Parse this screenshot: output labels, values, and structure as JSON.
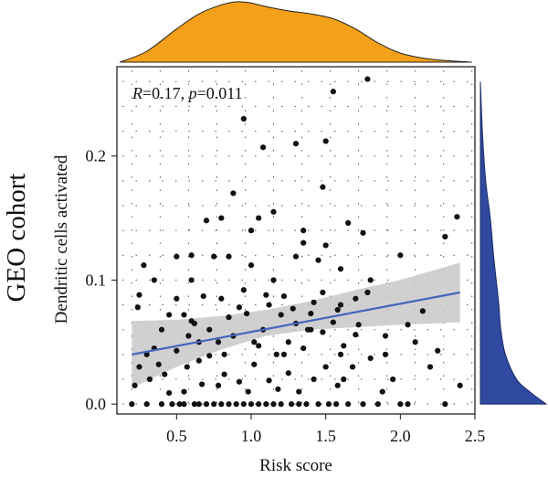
{
  "chart_data": {
    "type": "scatter",
    "side_label": "GEO cohort",
    "xlabel": "Risk score",
    "ylabel": "Dendritic cells activated",
    "xlim": [
      0.1,
      2.5
    ],
    "ylim": [
      -0.008,
      0.272
    ],
    "xticks": [
      "0.5",
      "1.0",
      "1.5",
      "2.0",
      "2.5"
    ],
    "xtick_values": [
      0.5,
      1.0,
      1.5,
      2.0,
      2.5
    ],
    "yticks": [
      "0.0",
      "0.1",
      "0.2"
    ],
    "ytick_values": [
      0.0,
      0.1,
      0.2
    ],
    "annotation": {
      "r_label": "R",
      "r_value": "=0.17, ",
      "p_label": "p",
      "p_value": "=0.011"
    },
    "grid": "dotted",
    "colors": {
      "points": "#111111",
      "trend": "#4466bb",
      "band": "#c8c8c8",
      "top_density": "#f5a01a",
      "right_density": "#2f4aa0"
    },
    "trend": {
      "x": [
        0.2,
        2.4
      ],
      "y": [
        0.04,
        0.09
      ]
    },
    "band": {
      "x": [
        0.2,
        0.5,
        0.8,
        1.1,
        1.4,
        1.7,
        2.0,
        2.4
      ],
      "lower": [
        0.013,
        0.03,
        0.044,
        0.055,
        0.06,
        0.062,
        0.064,
        0.066
      ],
      "upper": [
        0.067,
        0.068,
        0.071,
        0.076,
        0.083,
        0.092,
        0.1,
        0.114
      ]
    },
    "top_density": {
      "x": [
        0.12,
        0.3,
        0.5,
        0.65,
        0.8,
        0.9,
        1.0,
        1.1,
        1.25,
        1.4,
        1.55,
        1.7,
        1.85,
        2.0,
        2.2,
        2.48
      ],
      "d": [
        0.0,
        0.18,
        0.55,
        0.8,
        0.95,
        1.0,
        0.98,
        0.92,
        0.85,
        0.8,
        0.72,
        0.55,
        0.32,
        0.15,
        0.05,
        0.0
      ]
    },
    "right_density": {
      "y": [
        0.0,
        0.01,
        0.02,
        0.04,
        0.06,
        0.08,
        0.1,
        0.12,
        0.15,
        0.18,
        0.22,
        0.26
      ],
      "d": [
        1.0,
        0.75,
        0.55,
        0.38,
        0.31,
        0.28,
        0.24,
        0.2,
        0.15,
        0.08,
        0.03,
        0.0
      ]
    },
    "points": [
      [
        0.2,
        0.0
      ],
      [
        0.22,
        0.015
      ],
      [
        0.24,
        0.078
      ],
      [
        0.25,
        0.088
      ],
      [
        0.3,
        0.04
      ],
      [
        0.3,
        0.0
      ],
      [
        0.35,
        0.045
      ],
      [
        0.38,
        0.032
      ],
      [
        0.4,
        0.0
      ],
      [
        0.42,
        0.024
      ],
      [
        0.45,
        0.009
      ],
      [
        0.47,
        0.0
      ],
      [
        0.5,
        0.043
      ],
      [
        0.52,
        0.0
      ],
      [
        0.55,
        0.0
      ],
      [
        0.57,
        0.03
      ],
      [
        0.6,
        0.067
      ],
      [
        0.62,
        0.0
      ],
      [
        0.65,
        0.05
      ],
      [
        0.65,
        0.0
      ],
      [
        0.67,
        0.016
      ],
      [
        0.7,
        0.0
      ],
      [
        0.72,
        0.039
      ],
      [
        0.75,
        0.0
      ],
      [
        0.78,
        0.05
      ],
      [
        0.8,
        0.0
      ],
      [
        0.82,
        0.024
      ],
      [
        0.85,
        0.0
      ],
      [
        0.88,
        0.055
      ],
      [
        0.9,
        0.0
      ],
      [
        0.92,
        0.018
      ],
      [
        0.95,
        0.0
      ],
      [
        0.97,
        0.073
      ],
      [
        1.0,
        0.0
      ],
      [
        1.02,
        0.032
      ],
      [
        1.05,
        0.0
      ],
      [
        1.08,
        0.06
      ],
      [
        1.1,
        0.0
      ],
      [
        1.12,
        0.019
      ],
      [
        1.15,
        0.0
      ],
      [
        1.17,
        0.04
      ],
      [
        1.2,
        0.0
      ],
      [
        1.22,
        0.087
      ],
      [
        1.25,
        0.025
      ],
      [
        1.27,
        0.0
      ],
      [
        1.3,
        0.065
      ],
      [
        1.32,
        0.0
      ],
      [
        1.35,
        0.045
      ],
      [
        1.37,
        0.0
      ],
      [
        1.4,
        0.073
      ],
      [
        1.42,
        0.02
      ],
      [
        1.45,
        0.0
      ],
      [
        1.48,
        0.058
      ],
      [
        1.5,
        0.03
      ],
      [
        1.52,
        0.0
      ],
      [
        1.55,
        0.066
      ],
      [
        1.57,
        0.0
      ],
      [
        1.6,
        0.08
      ],
      [
        1.62,
        0.02
      ],
      [
        1.65,
        0.0
      ],
      [
        1.7,
        0.056
      ],
      [
        1.75,
        0.0
      ],
      [
        1.78,
        0.09
      ],
      [
        1.8,
        0.037
      ],
      [
        1.85,
        0.0
      ],
      [
        1.9,
        0.04
      ],
      [
        1.95,
        0.02
      ],
      [
        2.0,
        0.0
      ],
      [
        2.05,
        0.0
      ],
      [
        2.1,
        0.05
      ],
      [
        2.15,
        0.075
      ],
      [
        2.2,
        0.03
      ],
      [
        2.3,
        0.0
      ],
      [
        2.4,
        0.015
      ],
      [
        0.28,
        0.112
      ],
      [
        0.5,
        0.119
      ],
      [
        0.6,
        0.1
      ],
      [
        0.75,
        0.119
      ],
      [
        0.85,
        0.119
      ],
      [
        1.0,
        0.112
      ],
      [
        1.15,
        0.1
      ],
      [
        1.3,
        0.119
      ],
      [
        1.35,
        0.13
      ],
      [
        1.45,
        0.116
      ],
      [
        1.5,
        0.128
      ],
      [
        1.6,
        0.109
      ],
      [
        1.8,
        0.1
      ],
      [
        2.0,
        0.12
      ],
      [
        0.7,
        0.148
      ],
      [
        0.88,
        0.17
      ],
      [
        1.0,
        0.14
      ],
      [
        1.15,
        0.155
      ],
      [
        1.35,
        0.14
      ],
      [
        1.48,
        0.175
      ],
      [
        1.65,
        0.146
      ],
      [
        1.75,
        0.138
      ],
      [
        2.3,
        0.135
      ],
      [
        0.95,
        0.23
      ],
      [
        1.08,
        0.207
      ],
      [
        1.3,
        0.21
      ],
      [
        1.5,
        0.212
      ],
      [
        1.55,
        0.252
      ],
      [
        1.78,
        0.262
      ],
      [
        2.38,
        0.151
      ],
      [
        0.55,
        0.072
      ],
      [
        0.68,
        0.087
      ],
      [
        0.8,
        0.085
      ],
      [
        0.95,
        0.092
      ],
      [
        1.1,
        0.088
      ],
      [
        1.28,
        0.077
      ],
      [
        1.42,
        0.082
      ],
      [
        1.58,
        0.076
      ],
      [
        1.72,
        0.064
      ],
      [
        1.9,
        0.055
      ],
      [
        2.05,
        0.064
      ],
      [
        2.25,
        0.043
      ],
      [
        0.5,
        0.085
      ],
      [
        0.62,
        0.065
      ],
      [
        0.92,
        0.078
      ],
      [
        1.05,
        0.047
      ],
      [
        1.2,
        0.072
      ],
      [
        1.38,
        0.06
      ],
      [
        1.62,
        0.047
      ],
      [
        1.68,
        0.03
      ],
      [
        1.88,
        0.01
      ],
      [
        0.4,
        0.06
      ],
      [
        0.45,
        0.072
      ],
      [
        0.58,
        0.055
      ],
      [
        0.72,
        0.06
      ],
      [
        0.85,
        0.07
      ],
      [
        1.12,
        0.08
      ],
      [
        1.25,
        0.05
      ],
      [
        1.48,
        0.09
      ],
      [
        1.7,
        0.085
      ],
      [
        0.35,
        0.1
      ],
      [
        0.6,
        0.12
      ],
      [
        0.8,
        0.15
      ],
      [
        1.05,
        0.15
      ],
      [
        1.4,
        0.06
      ],
      [
        1.6,
        0.04
      ],
      [
        0.55,
        0.01
      ],
      [
        0.78,
        0.015
      ],
      [
        0.98,
        0.01
      ],
      [
        1.18,
        0.012
      ],
      [
        1.32,
        0.01
      ],
      [
        1.58,
        0.015
      ],
      [
        0.25,
        0.03
      ],
      [
        0.32,
        0.02
      ],
      [
        0.65,
        0.035
      ],
      [
        0.82,
        0.04
      ],
      [
        1.02,
        0.05
      ],
      [
        1.22,
        0.04
      ]
    ]
  }
}
